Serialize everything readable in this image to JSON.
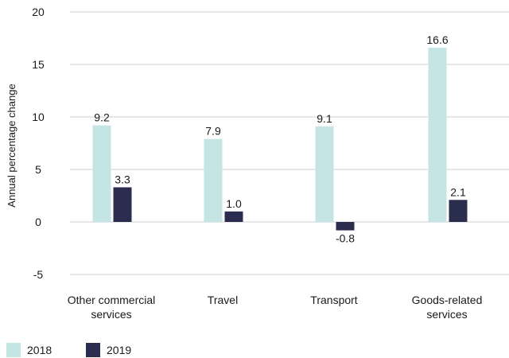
{
  "chart_data": {
    "type": "bar",
    "title": "",
    "xlabel": "",
    "ylabel": "Annual percentage change",
    "ylim": [
      -5,
      20
    ],
    "yticks": [
      -5,
      0,
      5,
      10,
      15,
      20
    ],
    "grid": true,
    "legend_position": "bottom-left",
    "categories": [
      [
        "Other commercial",
        "services"
      ],
      [
        "Travel"
      ],
      [
        "Transport"
      ],
      [
        "Goods-related",
        "services"
      ]
    ],
    "series": [
      {
        "name": "2018",
        "color": "#c5e5e5",
        "values": [
          9.2,
          7.9,
          9.1,
          16.6
        ]
      },
      {
        "name": "2019",
        "color": "#2b2d4f",
        "values": [
          3.3,
          1.0,
          -0.8,
          2.1
        ]
      }
    ]
  }
}
